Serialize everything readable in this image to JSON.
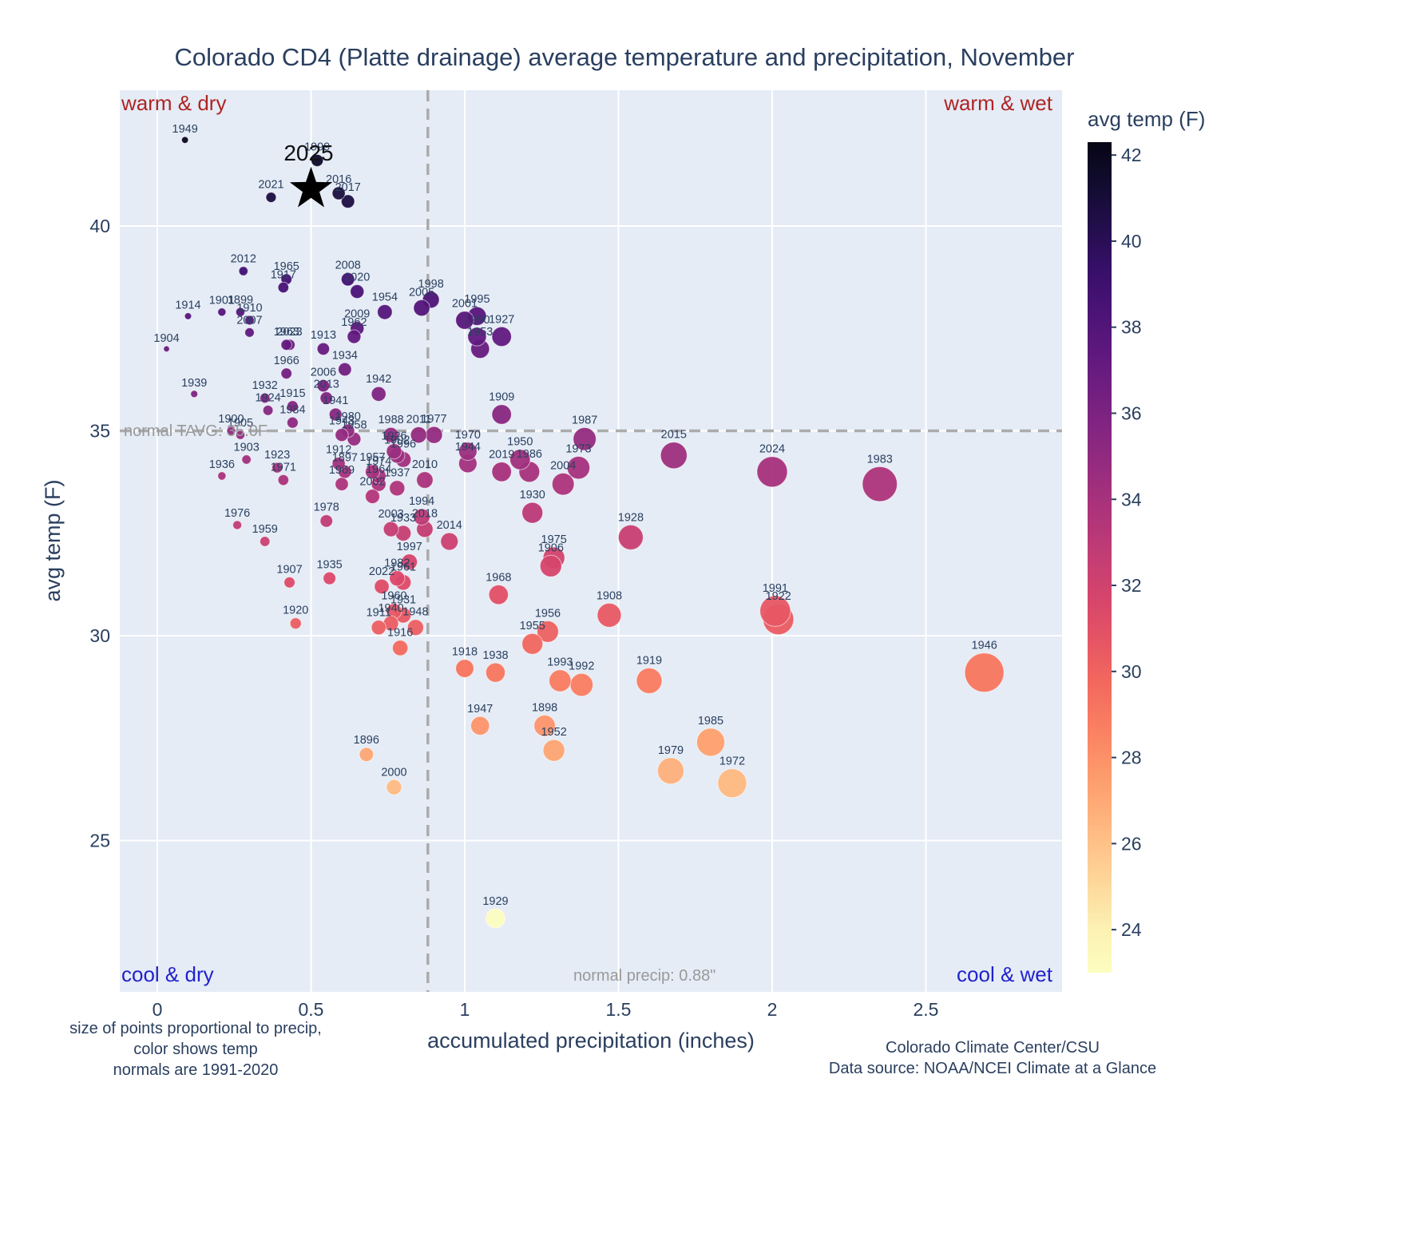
{
  "title": "Colorado CD4 (Platte drainage) average temperature and precipitation, November",
  "footnotes": {
    "left_lines": [
      "size of points proportional to precip,",
      "color shows temp",
      "normals are 1991-2020"
    ],
    "right_lines": [
      "Colorado Climate Center/CSU",
      "Data source: NOAA/NCEI Climate at a Glance"
    ]
  },
  "chart_data": {
    "type": "scatter",
    "title": "Colorado CD4 (Platte drainage) average temperature and precipitation, November",
    "xlabel": "accumulated precipitation (inches)",
    "ylabel": "avg temp (F)",
    "xlim": [
      -0.12,
      2.95
    ],
    "ylim": [
      21.3,
      43.4
    ],
    "xticks": [
      0,
      0.5,
      1,
      1.5,
      2,
      2.5
    ],
    "yticks": [
      25,
      30,
      35,
      40
    ],
    "grid": true,
    "background": "#e5ecf6",
    "quadrants": {
      "top_left": "warm & dry",
      "top_right": "warm & wet",
      "bottom_left": "cool & dry",
      "bottom_right": "cool & wet",
      "warm_color": "#b02424",
      "cool_color": "#2222cc"
    },
    "normals": {
      "tavg": 35.0,
      "tavg_label": "normal TAVG: 35.0F",
      "precip": 0.88,
      "precip_label": "normal precip: 0.88\""
    },
    "colorbar": {
      "title": "avg temp (F)",
      "ticks": [
        42,
        40,
        38,
        36,
        34,
        32,
        30,
        28,
        26,
        24
      ],
      "tmin": 23.0,
      "tmax": 42.3
    },
    "highlight": {
      "year": "2025",
      "precip": 0.5,
      "temp": 40.9
    },
    "points": [
      {
        "year": "1896",
        "precip": 0.68,
        "temp": 27.1
      },
      {
        "year": "1897",
        "precip": 0.61,
        "temp": 34.0
      },
      {
        "year": "1898",
        "precip": 1.26,
        "temp": 27.8
      },
      {
        "year": "1899",
        "precip": 0.27,
        "temp": 37.9
      },
      {
        "year": "1900",
        "precip": 0.24,
        "temp": 35.0
      },
      {
        "year": "1901",
        "precip": 0.21,
        "temp": 37.9
      },
      {
        "year": "1902",
        "precip": 0.78,
        "temp": 34.4
      },
      {
        "year": "1903",
        "precip": 0.29,
        "temp": 34.3
      },
      {
        "year": "1904",
        "precip": 0.03,
        "temp": 37.0
      },
      {
        "year": "1905",
        "precip": 0.27,
        "temp": 34.9
      },
      {
        "year": "1906",
        "precip": 1.28,
        "temp": 31.7
      },
      {
        "year": "1907",
        "precip": 0.43,
        "temp": 31.3
      },
      {
        "year": "1908",
        "precip": 1.47,
        "temp": 30.5
      },
      {
        "year": "1909",
        "precip": 1.12,
        "temp": 35.4
      },
      {
        "year": "1910",
        "precip": 0.3,
        "temp": 37.7
      },
      {
        "year": "1911",
        "precip": 0.72,
        "temp": 30.2
      },
      {
        "year": "1912",
        "precip": 0.59,
        "temp": 34.2
      },
      {
        "year": "1913",
        "precip": 0.54,
        "temp": 37.0
      },
      {
        "year": "1914",
        "precip": 0.1,
        "temp": 37.8
      },
      {
        "year": "1915",
        "precip": 0.44,
        "temp": 35.6
      },
      {
        "year": "1916",
        "precip": 0.79,
        "temp": 29.7
      },
      {
        "year": "1917",
        "precip": 0.41,
        "temp": 38.5
      },
      {
        "year": "1918",
        "precip": 1.0,
        "temp": 29.2
      },
      {
        "year": "1919",
        "precip": 1.6,
        "temp": 28.9
      },
      {
        "year": "1920",
        "precip": 0.45,
        "temp": 30.3
      },
      {
        "year": "1922",
        "precip": 2.02,
        "temp": 30.4
      },
      {
        "year": "1923",
        "precip": 0.39,
        "temp": 34.1
      },
      {
        "year": "1924",
        "precip": 0.36,
        "temp": 35.5
      },
      {
        "year": "1926",
        "precip": 0.77,
        "temp": 34.5
      },
      {
        "year": "1927",
        "precip": 1.12,
        "temp": 37.3
      },
      {
        "year": "1928",
        "precip": 1.54,
        "temp": 32.4
      },
      {
        "year": "1929",
        "precip": 1.1,
        "temp": 23.1
      },
      {
        "year": "1930",
        "precip": 1.22,
        "temp": 33.0
      },
      {
        "year": "1931",
        "precip": 0.8,
        "temp": 30.5
      },
      {
        "year": "1932",
        "precip": 0.35,
        "temp": 35.8
      },
      {
        "year": "1933",
        "precip": 0.8,
        "temp": 32.5
      },
      {
        "year": "1934",
        "precip": 0.61,
        "temp": 36.5
      },
      {
        "year": "1935",
        "precip": 0.56,
        "temp": 31.4
      },
      {
        "year": "1936",
        "precip": 0.21,
        "temp": 33.9
      },
      {
        "year": "1937",
        "precip": 0.78,
        "temp": 33.6
      },
      {
        "year": "1938",
        "precip": 1.1,
        "temp": 29.1
      },
      {
        "year": "1939",
        "precip": 0.12,
        "temp": 35.9
      },
      {
        "year": "1940",
        "precip": 0.76,
        "temp": 30.3
      },
      {
        "year": "1941",
        "precip": 0.58,
        "temp": 35.4
      },
      {
        "year": "1942",
        "precip": 0.72,
        "temp": 35.9
      },
      {
        "year": "1943",
        "precip": 0.6,
        "temp": 34.9
      },
      {
        "year": "1944",
        "precip": 1.01,
        "temp": 34.2
      },
      {
        "year": "1946",
        "precip": 2.69,
        "temp": 29.1
      },
      {
        "year": "1947",
        "precip": 1.05,
        "temp": 27.8
      },
      {
        "year": "1948",
        "precip": 0.84,
        "temp": 30.2
      },
      {
        "year": "1949",
        "precip": 0.09,
        "temp": 42.1
      },
      {
        "year": "1950",
        "precip": 1.18,
        "temp": 34.3
      },
      {
        "year": "1952",
        "precip": 1.29,
        "temp": 27.2
      },
      {
        "year": "1953",
        "precip": 1.05,
        "temp": 37.0
      },
      {
        "year": "1954",
        "precip": 0.74,
        "temp": 37.9
      },
      {
        "year": "1955",
        "precip": 1.22,
        "temp": 29.8
      },
      {
        "year": "1956",
        "precip": 1.27,
        "temp": 30.1
      },
      {
        "year": "1957",
        "precip": 0.7,
        "temp": 34.0
      },
      {
        "year": "1958",
        "precip": 0.64,
        "temp": 34.8
      },
      {
        "year": "1959",
        "precip": 0.35,
        "temp": 32.3
      },
      {
        "year": "1960",
        "precip": 0.77,
        "temp": 30.6
      },
      {
        "year": "1961",
        "precip": 0.8,
        "temp": 31.3
      },
      {
        "year": "1962",
        "precip": 0.64,
        "temp": 37.3
      },
      {
        "year": "1963",
        "precip": 0.42,
        "temp": 37.1
      },
      {
        "year": "1964",
        "precip": 0.72,
        "temp": 33.7
      },
      {
        "year": "1965",
        "precip": 0.42,
        "temp": 38.7
      },
      {
        "year": "1966",
        "precip": 0.42,
        "temp": 36.4
      },
      {
        "year": "1968",
        "precip": 1.11,
        "temp": 31.0
      },
      {
        "year": "1969",
        "precip": 0.6,
        "temp": 33.7
      },
      {
        "year": "1970",
        "precip": 1.01,
        "temp": 34.5
      },
      {
        "year": "1971",
        "precip": 0.41,
        "temp": 33.8
      },
      {
        "year": "1972",
        "precip": 1.87,
        "temp": 26.4
      },
      {
        "year": "1973",
        "precip": 1.37,
        "temp": 34.1
      },
      {
        "year": "1974",
        "precip": 0.72,
        "temp": 33.9
      },
      {
        "year": "1975",
        "precip": 1.29,
        "temp": 31.9
      },
      {
        "year": "1976",
        "precip": 0.26,
        "temp": 32.7
      },
      {
        "year": "1977",
        "precip": 0.9,
        "temp": 34.9
      },
      {
        "year": "1978",
        "precip": 0.55,
        "temp": 32.8
      },
      {
        "year": "1979",
        "precip": 1.67,
        "temp": 26.7
      },
      {
        "year": "1980",
        "precip": 0.62,
        "temp": 35.0
      },
      {
        "year": "1982",
        "precip": 0.78,
        "temp": 31.4
      },
      {
        "year": "1983",
        "precip": 2.35,
        "temp": 33.7
      },
      {
        "year": "1984",
        "precip": 0.44,
        "temp": 35.2
      },
      {
        "year": "1985",
        "precip": 1.8,
        "temp": 27.4
      },
      {
        "year": "1986",
        "precip": 1.21,
        "temp": 34.0
      },
      {
        "year": "1987",
        "precip": 1.39,
        "temp": 34.8
      },
      {
        "year": "1988",
        "precip": 0.76,
        "temp": 34.9
      },
      {
        "year": "1990",
        "precip": 1.04,
        "temp": 37.3
      },
      {
        "year": "1991",
        "precip": 2.01,
        "temp": 30.6
      },
      {
        "year": "1992",
        "precip": 1.38,
        "temp": 28.8
      },
      {
        "year": "1993",
        "precip": 1.31,
        "temp": 28.9
      },
      {
        "year": "1994",
        "precip": 0.86,
        "temp": 32.9
      },
      {
        "year": "1995",
        "precip": 1.04,
        "temp": 37.8
      },
      {
        "year": "1996",
        "precip": 0.8,
        "temp": 34.3
      },
      {
        "year": "1997",
        "precip": 0.82,
        "temp": 31.8
      },
      {
        "year": "1998",
        "precip": 0.89,
        "temp": 38.2
      },
      {
        "year": "1999",
        "precip": 0.52,
        "temp": 41.6
      },
      {
        "year": "2000",
        "precip": 0.77,
        "temp": 26.3
      },
      {
        "year": "2001",
        "precip": 1.0,
        "temp": 37.7
      },
      {
        "year": "2002",
        "precip": 0.7,
        "temp": 33.4
      },
      {
        "year": "2003",
        "precip": 0.76,
        "temp": 32.6
      },
      {
        "year": "2004",
        "precip": 1.32,
        "temp": 33.7
      },
      {
        "year": "2005",
        "precip": 0.86,
        "temp": 38.0
      },
      {
        "year": "2006",
        "precip": 0.54,
        "temp": 36.1
      },
      {
        "year": "2007",
        "precip": 0.3,
        "temp": 37.4
      },
      {
        "year": "2008",
        "precip": 0.62,
        "temp": 38.7
      },
      {
        "year": "2009",
        "precip": 0.65,
        "temp": 37.5
      },
      {
        "year": "2010",
        "precip": 0.87,
        "temp": 33.8
      },
      {
        "year": "2011",
        "precip": 0.85,
        "temp": 34.9
      },
      {
        "year": "2012",
        "precip": 0.28,
        "temp": 38.9
      },
      {
        "year": "2013",
        "precip": 0.55,
        "temp": 35.8
      },
      {
        "year": "2014",
        "precip": 0.95,
        "temp": 32.3
      },
      {
        "year": "2015",
        "precip": 1.68,
        "temp": 34.4
      },
      {
        "year": "2016",
        "precip": 0.59,
        "temp": 40.8
      },
      {
        "year": "2017",
        "precip": 0.62,
        "temp": 40.6
      },
      {
        "year": "2018",
        "precip": 0.87,
        "temp": 32.6
      },
      {
        "year": "2019",
        "precip": 1.12,
        "temp": 34.0
      },
      {
        "year": "2020",
        "precip": 0.65,
        "temp": 38.4
      },
      {
        "year": "2021",
        "precip": 0.37,
        "temp": 40.7
      },
      {
        "year": "2022",
        "precip": 0.73,
        "temp": 31.2
      },
      {
        "year": "2023",
        "precip": 0.43,
        "temp": 37.1
      },
      {
        "year": "2024",
        "precip": 2.0,
        "temp": 34.0
      }
    ]
  }
}
